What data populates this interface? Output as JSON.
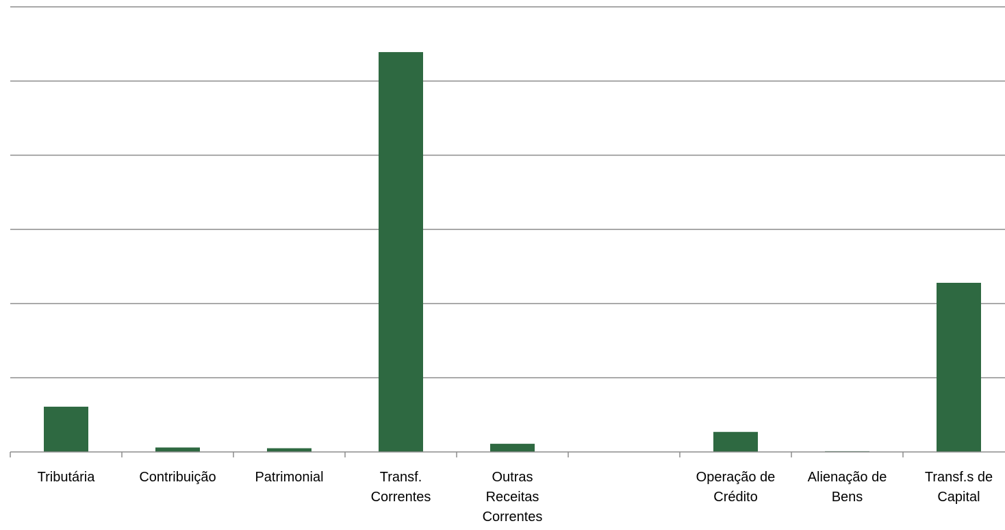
{
  "colors": {
    "bar": "#2e6941",
    "gridline": "#8c8c8c",
    "axis": "#8c8c8c"
  },
  "chart_data": {
    "type": "bar",
    "categories": [
      "Tributária",
      "Contribuição",
      "Patrimonial",
      "Transf. Correntes",
      "Outras Receitas Correntes",
      "",
      "Operação de Crédito",
      "Alienação de Bens",
      "Transf.s de Capital"
    ],
    "category_lines": [
      [
        "Tributária"
      ],
      [
        "Contribuição"
      ],
      [
        "Patrimonial"
      ],
      [
        "Transf.",
        "Correntes"
      ],
      [
        "Outras",
        "Receitas",
        "Correntes"
      ],
      [],
      [
        "Operação de",
        "Crédito"
      ],
      [
        "Alienação de",
        "Bens"
      ],
      [
        "Transf.s de",
        "Capital"
      ]
    ],
    "values": [
      0.61,
      0.06,
      0.05,
      5.39,
      0.11,
      0,
      0.27,
      0.01,
      2.28
    ],
    "ylim": [
      0,
      6
    ],
    "gridline_step": 1,
    "y_ticks_shown": false,
    "grid": true,
    "legend": "none"
  }
}
